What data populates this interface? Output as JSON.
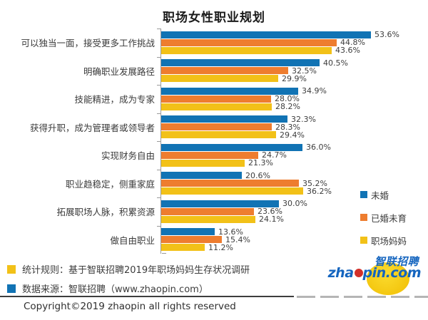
{
  "chart_data": {
    "type": "bar",
    "orientation": "horizontal",
    "title": "职场女性职业规划",
    "categories": [
      "可以独当一面，接受更多工作挑战",
      "明确职业发展路径",
      "技能精进，成为专家",
      "获得升职，成为管理者或领导者",
      "实现财务自由",
      "职业趋稳定，侧重家庭",
      "拓展职场人脉，积累资源",
      "做自由职业"
    ],
    "series": [
      {
        "name": "未婚",
        "color": "#1173b4",
        "values": [
          53.6,
          40.5,
          34.9,
          32.3,
          36.0,
          20.6,
          30.0,
          13.6
        ],
        "labels": [
          "53.6%",
          "40.5%",
          "34.9%",
          "32.3%",
          "36.0%",
          "20.6%",
          "30.0%",
          "13.6%"
        ]
      },
      {
        "name": "已婚未育",
        "color": "#ee7d2f",
        "values": [
          44.8,
          32.5,
          28.0,
          28.3,
          24.7,
          35.2,
          23.6,
          15.4
        ],
        "labels": [
          "44.8%",
          "32.5%",
          "28.0%",
          "28.3%",
          "24.7%",
          "35.2%",
          "23.6%",
          "15.4%"
        ]
      },
      {
        "name": "职场妈妈",
        "color": "#f2c118",
        "values": [
          43.6,
          29.9,
          28.2,
          29.4,
          21.3,
          36.2,
          24.1,
          11.2
        ],
        "labels": [
          "43.6%",
          "29.9%",
          "28.2%",
          "29.4%",
          "21.3%",
          "36.2%",
          "24.1%",
          "11.2%"
        ]
      }
    ],
    "value_suffix": "%",
    "xlim": [
      0,
      60
    ],
    "grid": false,
    "legend_position": "right"
  },
  "footer": {
    "notes": [
      {
        "marker_color": "#f2c118",
        "text": "统计规则：基于智联招聘2019年职场妈妈生存状况调研"
      },
      {
        "marker_color": "#1173b4",
        "text": "数据来源：智联招聘（www.zhaopin.com）"
      }
    ],
    "copyright": "Copyright©2019 zhaopin all rights reserved"
  },
  "logo": {
    "cn": "智联招聘",
    "en_pre": "zha",
    "en_post": "pin.com"
  }
}
